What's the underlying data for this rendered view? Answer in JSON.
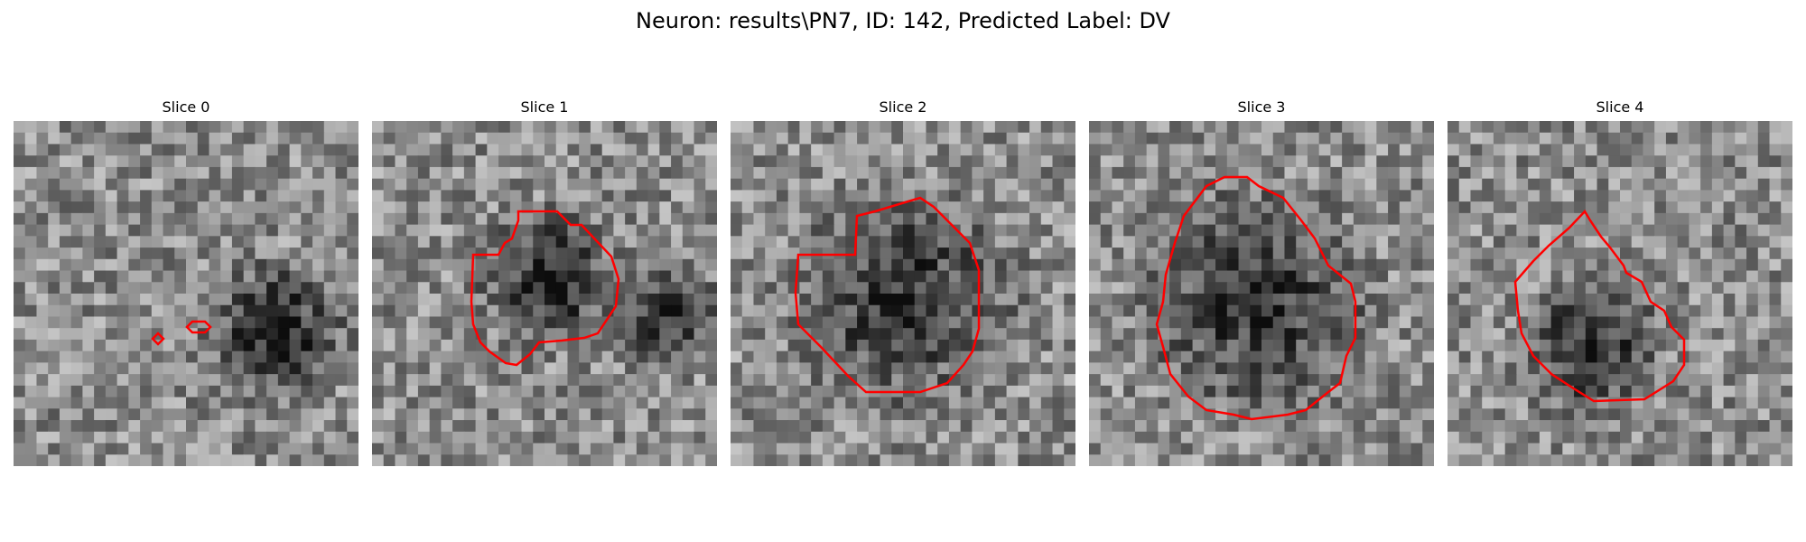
{
  "figure": {
    "title": "Neuron: results\\PN7, ID: 142, Predicted Label: DV"
  },
  "contour_color": "#ff0000",
  "slices": [
    {
      "title": "Slice 0"
    },
    {
      "title": "Slice 1"
    },
    {
      "title": "Slice 2"
    },
    {
      "title": "Slice 3"
    },
    {
      "title": "Slice 4"
    }
  ]
}
